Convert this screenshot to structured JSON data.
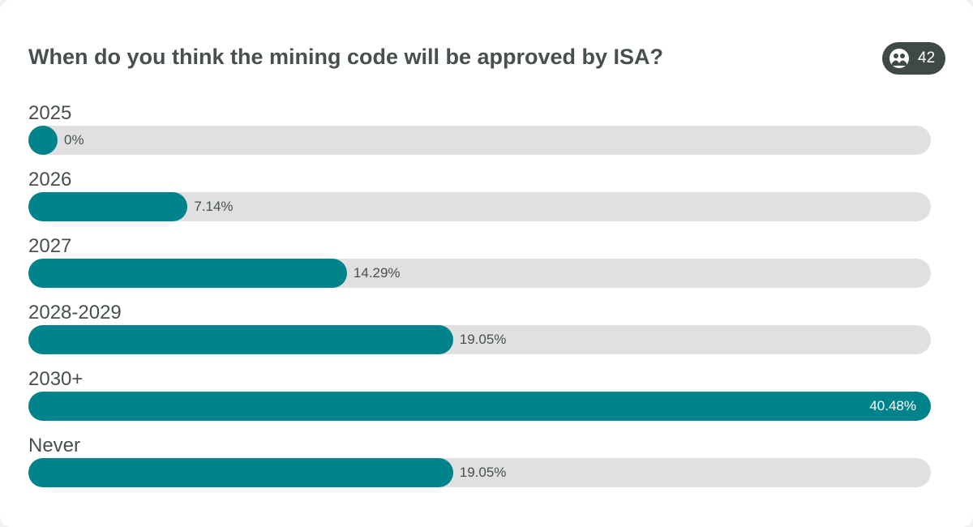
{
  "poll": {
    "question": "When do you think the mining code will be approved by ISA?",
    "participants_icon": "people-icon",
    "participants": "42",
    "accent_color": "#00838a",
    "track_color": "#e0e0e0",
    "options": [
      {
        "label": "2025",
        "percent_text": "0%",
        "value": 0
      },
      {
        "label": "2026",
        "percent_text": "7.14%",
        "value": 7.14
      },
      {
        "label": "2027",
        "percent_text": "14.29%",
        "value": 14.29
      },
      {
        "label": "2028-2029",
        "percent_text": "19.05%",
        "value": 19.05
      },
      {
        "label": "2030+",
        "percent_text": "40.48%",
        "value": 40.48
      },
      {
        "label": "Never",
        "percent_text": "19.05%",
        "value": 19.05
      }
    ]
  }
}
